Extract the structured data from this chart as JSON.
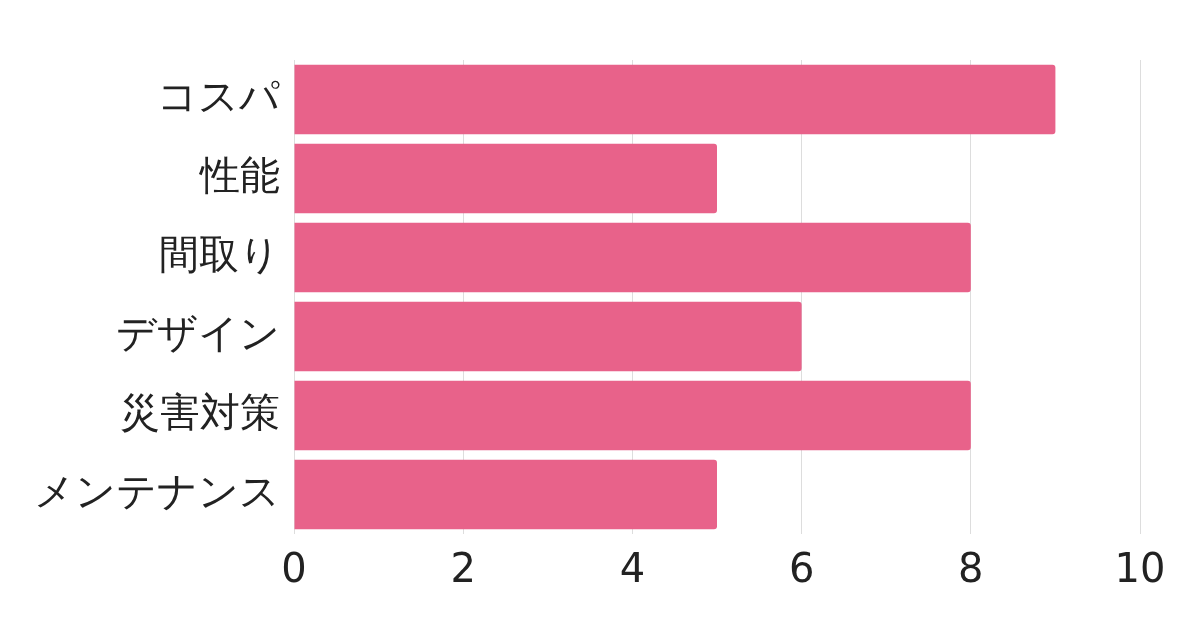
{
  "chart_data": {
    "type": "bar",
    "orientation": "horizontal",
    "categories": [
      "コスパ",
      "性能",
      "間取り",
      "デザイン",
      "災害対策",
      "メンテナンス"
    ],
    "values": [
      9,
      5,
      8,
      6,
      8,
      5
    ],
    "color": "#e8628a",
    "xlim": [
      0,
      10
    ],
    "xticks": [
      0,
      2,
      4,
      6,
      8,
      10
    ],
    "grid": "x"
  }
}
